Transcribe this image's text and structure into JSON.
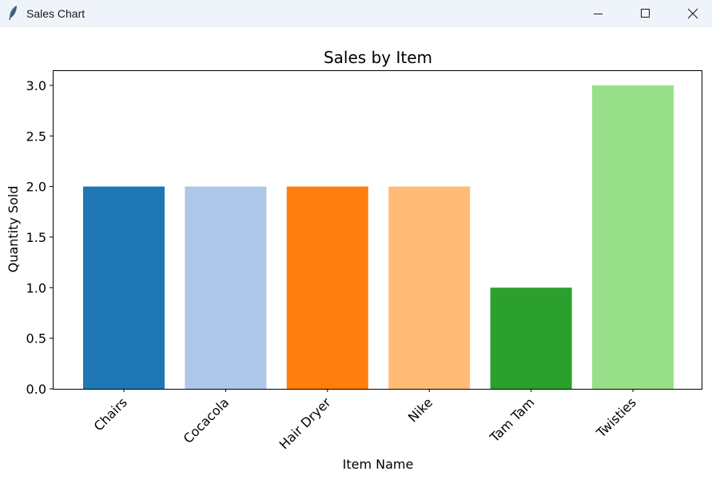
{
  "window": {
    "title": "Sales Chart",
    "icons": {
      "app": "feather-icon",
      "minimize": "minimize-icon",
      "maximize": "maximize-icon",
      "close": "close-icon"
    }
  },
  "chart_data": {
    "type": "bar",
    "title": "Sales by Item",
    "xlabel": "Item Name",
    "ylabel": "Quantity Sold",
    "categories": [
      "Chairs",
      "Cocacola",
      "Hair Dryer",
      "Nike",
      "Tam Tam",
      "Twisties"
    ],
    "values": [
      2,
      2,
      2,
      2,
      1,
      3
    ],
    "colors": [
      "#1f77b4",
      "#aec7e8",
      "#ff7f0e",
      "#ffbb78",
      "#2ca02c",
      "#98df8a"
    ],
    "ylim": [
      0,
      3.15
    ],
    "yticks": [
      "0.0",
      "0.5",
      "1.0",
      "1.5",
      "2.0",
      "2.5",
      "3.0"
    ],
    "xtick_rotation": 45,
    "grid": false,
    "legend": "none"
  }
}
